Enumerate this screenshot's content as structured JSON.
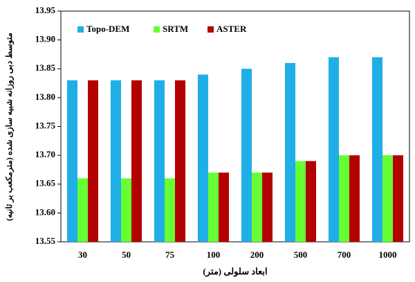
{
  "chart_data": {
    "type": "bar",
    "y_axis_label": "متوسط دبی روزانه شبیه سازی شده (مترمکعب بر ثانیه)",
    "x_axis_label": "ابعاد سلولی (متر)",
    "categories": [
      "30",
      "50",
      "75",
      "100",
      "200",
      "500",
      "700",
      "1000"
    ],
    "series": [
      {
        "name": "Topo-DEM",
        "color": "#1faee6",
        "values": [
          13.83,
          13.83,
          13.83,
          13.84,
          13.85,
          13.86,
          13.87,
          13.87
        ]
      },
      {
        "name": "SRTM",
        "color": "#66ff33",
        "values": [
          13.66,
          13.66,
          13.66,
          13.67,
          13.67,
          13.69,
          13.7,
          13.7
        ]
      },
      {
        "name": "ASTER",
        "color": "#b30000",
        "values": [
          13.83,
          13.83,
          13.83,
          13.67,
          13.67,
          13.69,
          13.7,
          13.7
        ]
      }
    ],
    "ylim": [
      13.55,
      13.95
    ],
    "yticks": [
      13.55,
      {
        "value": 13.6,
        "label": "13.60"
      },
      13.65,
      {
        "value": 13.7,
        "label": "13.70"
      },
      13.75,
      {
        "value": 13.8,
        "label": "13.80"
      },
      13.85,
      {
        "value": 13.9,
        "label": "13.90"
      },
      13.95
    ],
    "grid": false,
    "legend": "top-left"
  }
}
